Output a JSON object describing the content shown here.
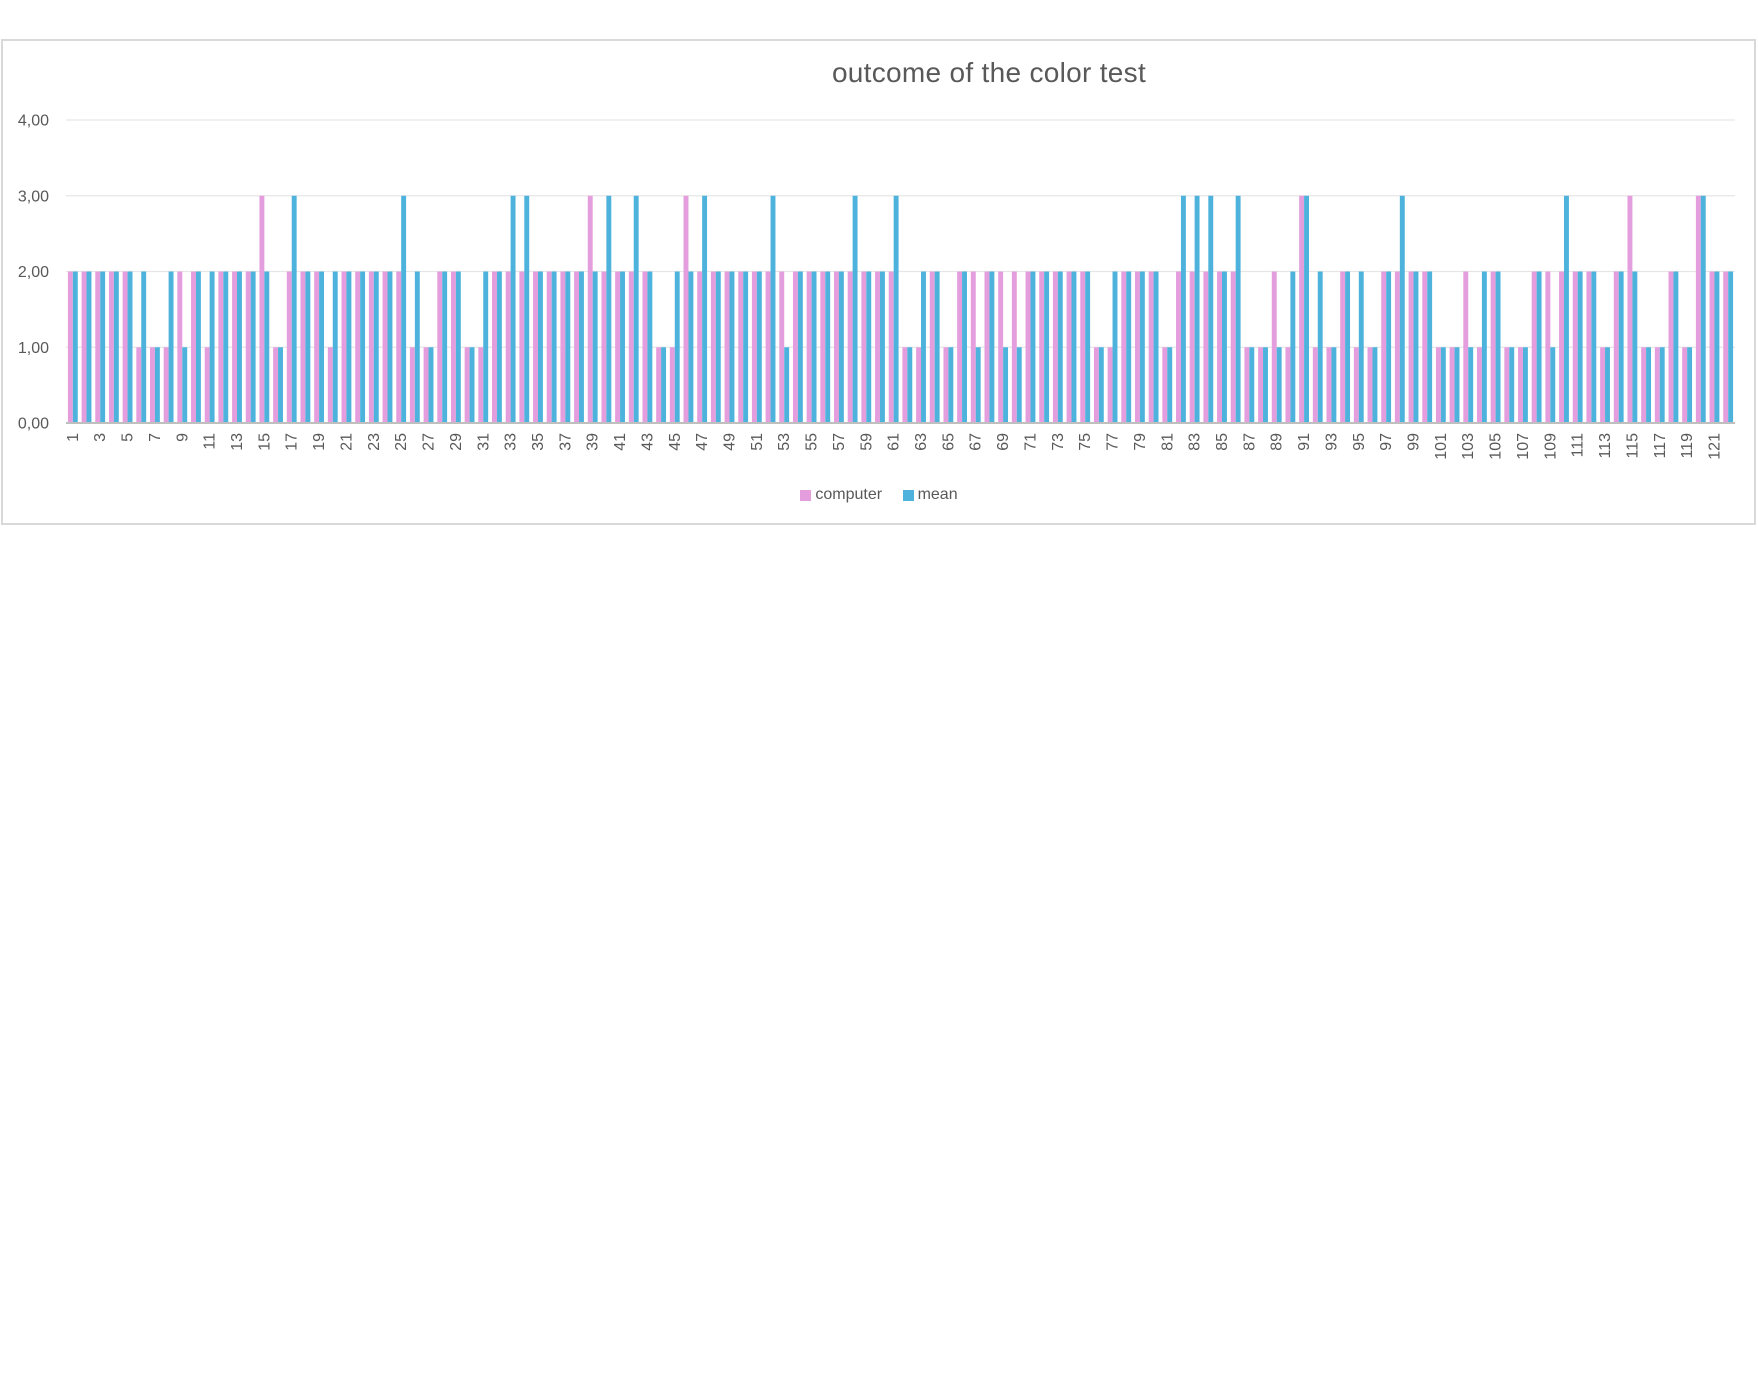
{
  "chart_data": {
    "type": "bar",
    "title": "outcome of the color test",
    "xlabel": "",
    "ylabel": "",
    "ylim": [
      0,
      4
    ],
    "y_ticks": [
      "0,00",
      "1,00",
      "2,00",
      "3,00",
      "4,00"
    ],
    "grid": true,
    "legend_position": "bottom",
    "x_tick_step": 2,
    "categories": [
      1,
      2,
      3,
      4,
      5,
      6,
      7,
      8,
      9,
      10,
      11,
      12,
      13,
      14,
      15,
      16,
      17,
      18,
      19,
      20,
      21,
      22,
      23,
      24,
      25,
      26,
      27,
      28,
      29,
      30,
      31,
      32,
      33,
      34,
      35,
      36,
      37,
      38,
      39,
      40,
      41,
      42,
      43,
      44,
      45,
      46,
      47,
      48,
      49,
      50,
      51,
      52,
      53,
      54,
      55,
      56,
      57,
      58,
      59,
      60,
      61,
      62,
      63,
      64,
      65,
      66,
      67,
      68,
      69,
      70,
      71,
      72,
      73,
      74,
      75,
      76,
      77,
      78,
      79,
      80,
      81,
      82,
      83,
      84,
      85,
      86,
      87,
      88,
      89,
      90,
      91,
      92,
      93,
      94,
      95,
      96,
      97,
      98,
      99,
      100,
      101,
      102,
      103,
      104,
      105,
      106,
      107,
      108,
      109,
      110,
      111,
      112,
      113,
      114,
      115,
      116,
      117,
      118,
      119,
      120,
      121,
      122
    ],
    "series": [
      {
        "name": "computer",
        "color": "#e59edd",
        "values": [
          2,
          2,
          2,
          2,
          2,
          1,
          1,
          1,
          2,
          2,
          1,
          2,
          2,
          2,
          3,
          1,
          2,
          2,
          2,
          1,
          2,
          2,
          2,
          2,
          2,
          1,
          1,
          2,
          2,
          1,
          1,
          2,
          2,
          2,
          2,
          2,
          2,
          2,
          3,
          2,
          2,
          2,
          2,
          1,
          1,
          3,
          2,
          2,
          2,
          2,
          2,
          2,
          2,
          2,
          2,
          2,
          2,
          2,
          2,
          2,
          2,
          1,
          1,
          2,
          1,
          2,
          2,
          2,
          2,
          2,
          2,
          2,
          2,
          2,
          2,
          1,
          1,
          2,
          2,
          2,
          1,
          2,
          2,
          2,
          2,
          2,
          1,
          1,
          2,
          1,
          3,
          1,
          1,
          2,
          1,
          1,
          2,
          2,
          2,
          2,
          1,
          1,
          2,
          1,
          2,
          1,
          1,
          2,
          2,
          2,
          2,
          2,
          1,
          2,
          3,
          1,
          1,
          2,
          1,
          3,
          2,
          2
        ]
      },
      {
        "name": "mean",
        "color": "#4eb3dc",
        "values": [
          2,
          2,
          2,
          2,
          2,
          2,
          1,
          2,
          1,
          2,
          2,
          2,
          2,
          2,
          2,
          1,
          3,
          2,
          2,
          2,
          2,
          2,
          2,
          2,
          3,
          2,
          1,
          2,
          2,
          1,
          2,
          2,
          3,
          3,
          2,
          2,
          2,
          2,
          2,
          3,
          2,
          3,
          2,
          1,
          2,
          2,
          3,
          2,
          2,
          2,
          2,
          3,
          1,
          2,
          2,
          2,
          2,
          3,
          2,
          2,
          3,
          1,
          2,
          2,
          1,
          2,
          1,
          2,
          1,
          1,
          2,
          2,
          2,
          2,
          2,
          1,
          2,
          2,
          2,
          2,
          1,
          3,
          3,
          3,
          2,
          3,
          1,
          1,
          1,
          2,
          3,
          2,
          1,
          2,
          2,
          1,
          2,
          3,
          2,
          2,
          1,
          1,
          1,
          2,
          2,
          1,
          1,
          2,
          1,
          3,
          2,
          2,
          1,
          2,
          2,
          1,
          1,
          2,
          1,
          3,
          2,
          2
        ]
      }
    ]
  }
}
